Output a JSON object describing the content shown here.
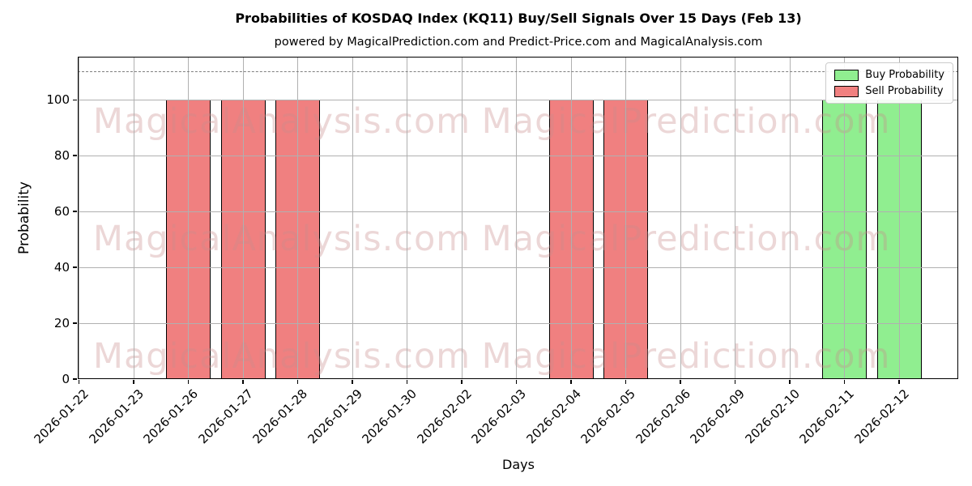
{
  "header": {
    "title": "Probabilities of KOSDAQ Index (KQ11) Buy/Sell Signals Over 15 Days (Feb 13)",
    "subtitle": "powered by MagicalPrediction.com and Predict-Price.com and MagicalAnalysis.com"
  },
  "watermarks": {
    "left_text": "MagicalAnalysis.com",
    "right_text": "MagicalPrediction.com"
  },
  "legend": {
    "items": [
      {
        "label": "Buy Probability",
        "color": "#90EE90"
      },
      {
        "label": "Sell Probability",
        "color": "#F08080"
      }
    ]
  },
  "colors": {
    "buy": "#90EE90",
    "sell": "#F08080",
    "bar_edge": "#000000",
    "grid": "#b0b0b0",
    "reference_line": "#7f7f7f",
    "watermark": "rgba(200,140,140,0.35)"
  },
  "chart_data": {
    "type": "bar",
    "title": "Probabilities of KOSDAQ Index (KQ11) Buy/Sell Signals Over 15 Days (Feb 13)",
    "subtitle": "powered by MagicalPrediction.com and Predict-Price.com and MagicalAnalysis.com",
    "xlabel": "Days",
    "ylabel": "Probability",
    "ylim": [
      0,
      115.4
    ],
    "yticks": [
      0,
      20,
      40,
      60,
      80,
      100
    ],
    "grid": true,
    "legend_position": "upper right",
    "reference_line": {
      "y": 110,
      "style": "dashed",
      "color": "#7f7f7f"
    },
    "categories": [
      "2026-01-22",
      "2026-01-23",
      "2026-01-26",
      "2026-01-27",
      "2026-01-28",
      "2026-01-29",
      "2026-01-30",
      "2026-02-02",
      "2026-02-03",
      "2026-02-04",
      "2026-02-05",
      "2026-02-06",
      "2026-02-09",
      "2026-02-10",
      "2026-02-11",
      "2026-02-12"
    ],
    "series": [
      {
        "name": "Buy Probability",
        "color": "#90EE90",
        "values": [
          0,
          0,
          0,
          0,
          0,
          0,
          0,
          0,
          0,
          0,
          0,
          0,
          0,
          0,
          100,
          100
        ]
      },
      {
        "name": "Sell Probability",
        "color": "#F08080",
        "values": [
          0,
          0,
          100,
          100,
          100,
          0,
          0,
          0,
          0,
          100,
          100,
          0,
          0,
          0,
          0,
          0
        ]
      }
    ]
  }
}
